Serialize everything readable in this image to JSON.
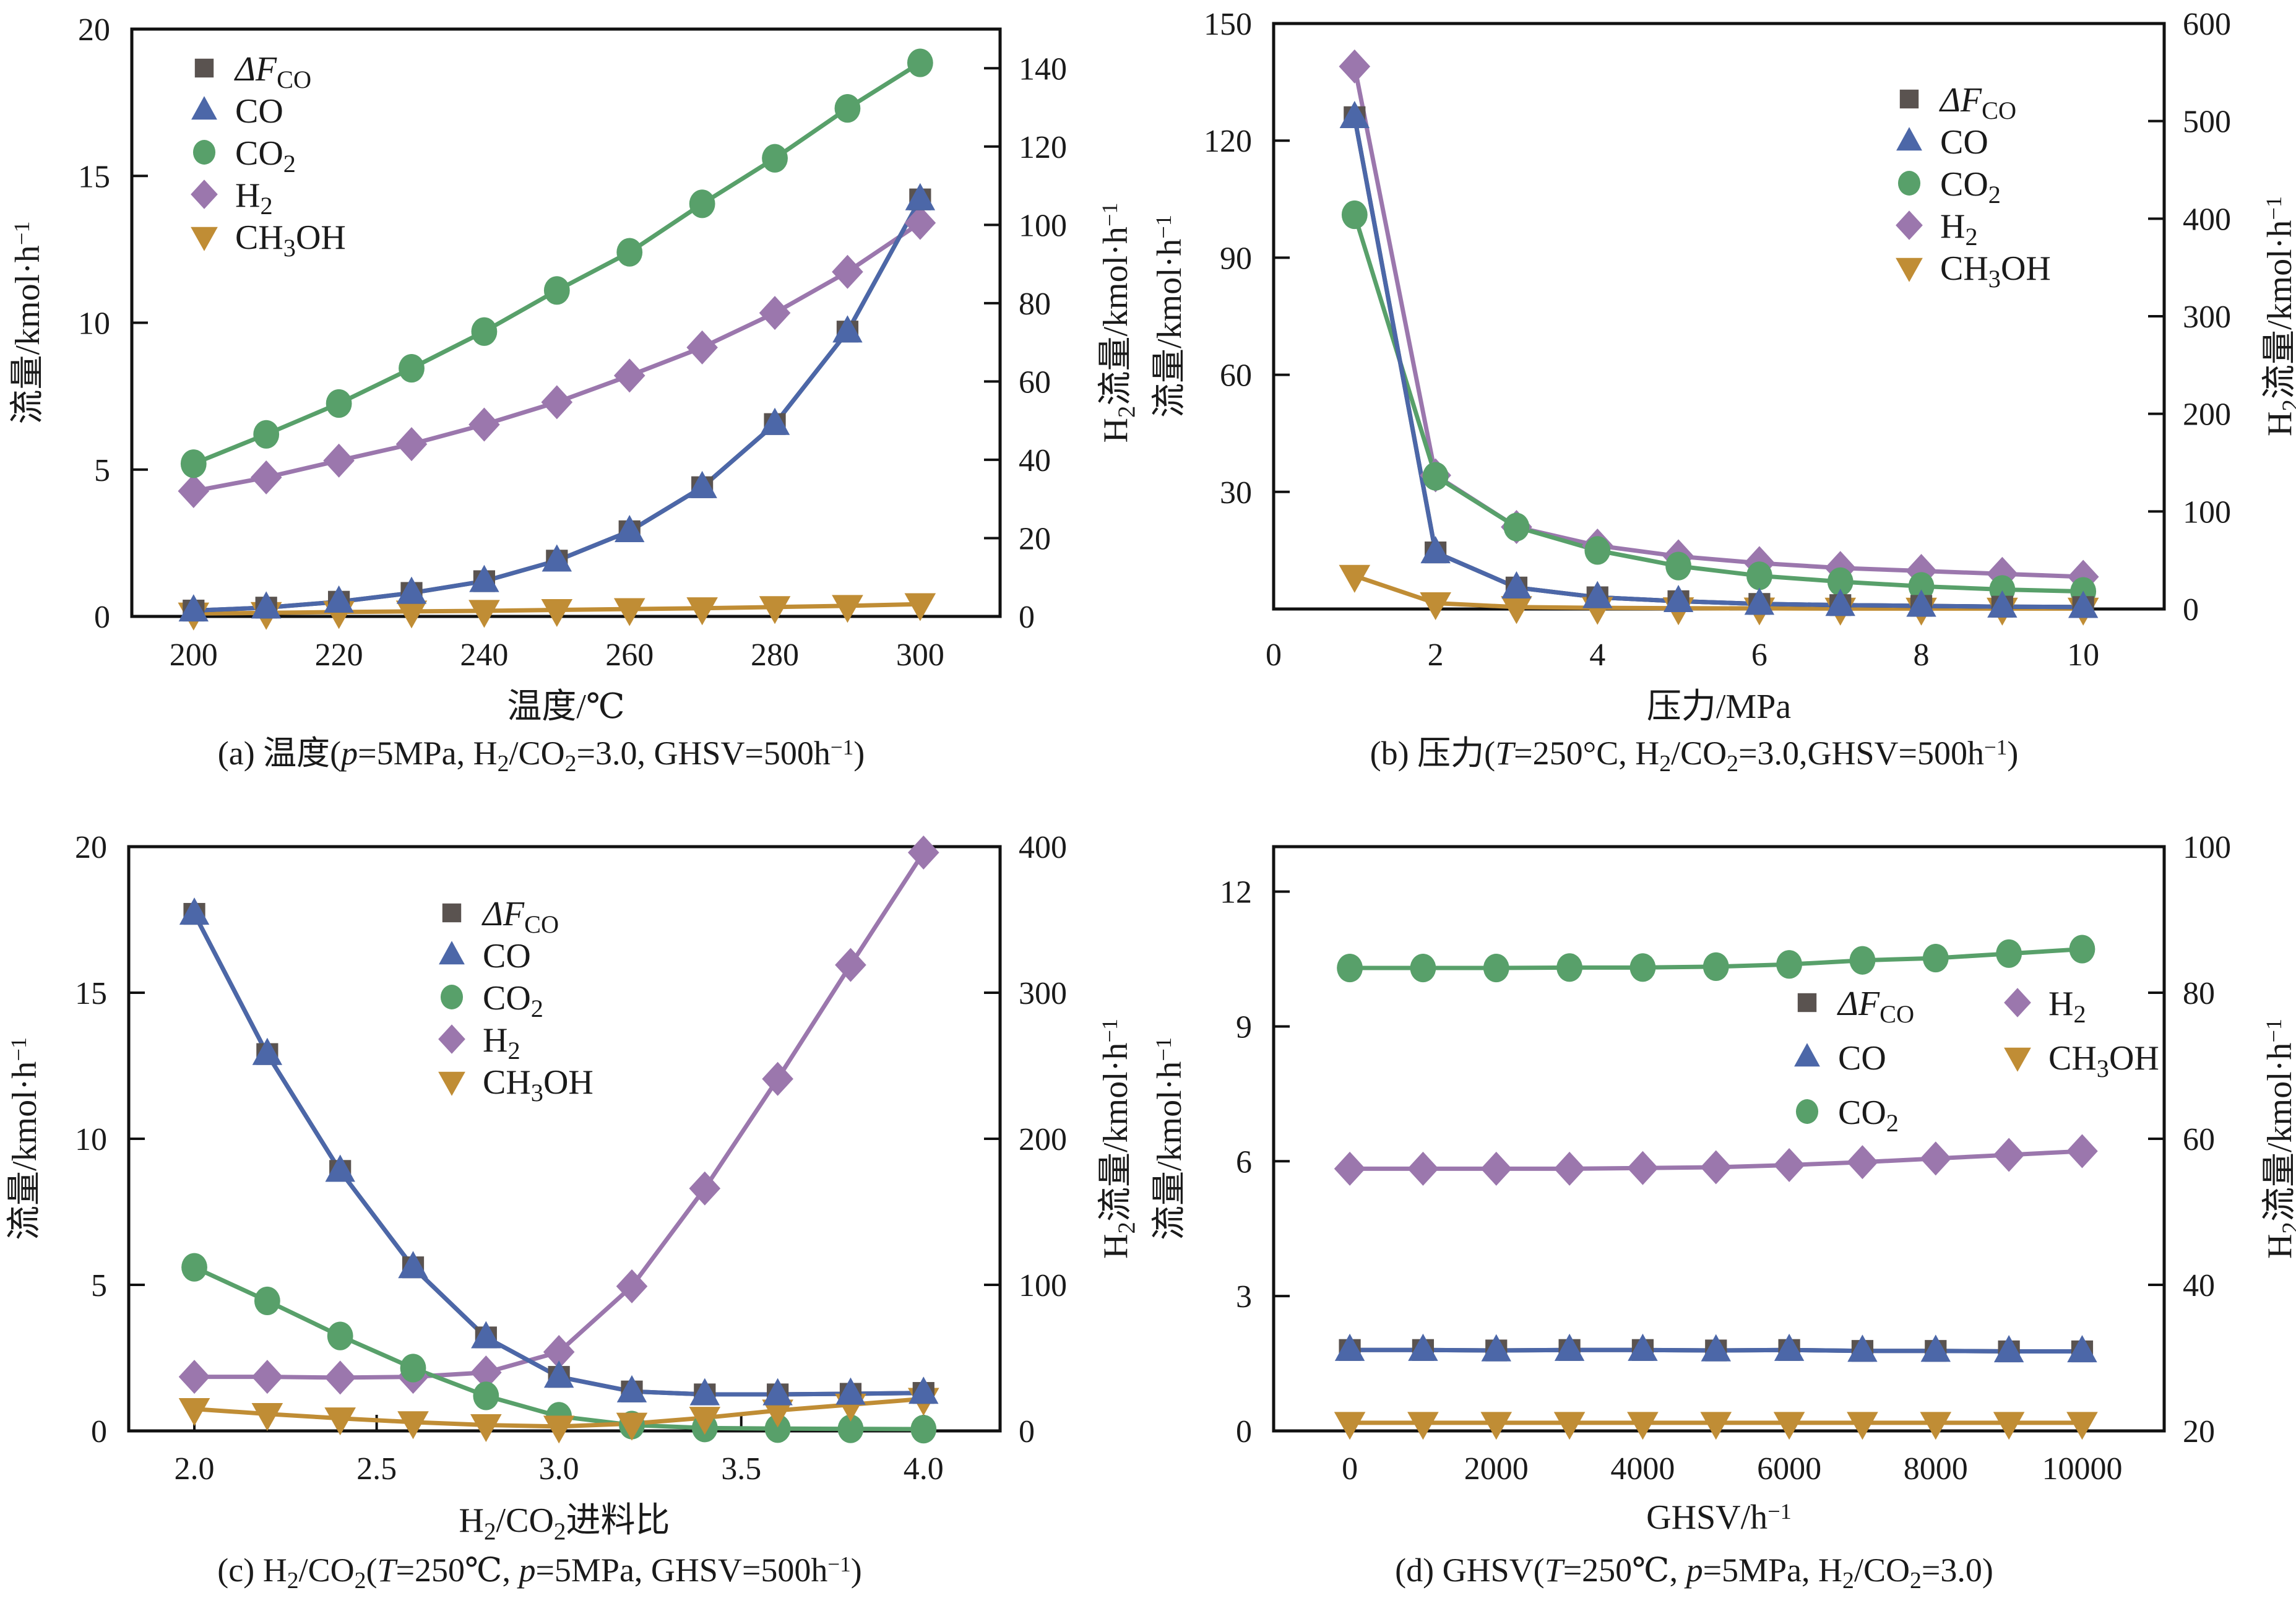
{
  "figure": {
    "colors": {
      "dF_CO": "#5a5350",
      "CO": "#4c67a8",
      "CO2": "#58a06a",
      "H2": "#9b77ad",
      "CH3OH": "#c08d35"
    },
    "legend_entries": [
      {
        "key": "dF_CO",
        "marker": "square",
        "label_main": "ΔF",
        "label_sub": "CO",
        "italic_main": true
      },
      {
        "key": "CO",
        "marker": "triangle-up",
        "label_main": "CO",
        "label_sub": ""
      },
      {
        "key": "CO2",
        "marker": "circle",
        "label_main": "CO",
        "label_sub": "2"
      },
      {
        "key": "H2",
        "marker": "diamond",
        "label_main": "H",
        "label_sub": "2"
      },
      {
        "key": "CH3OH",
        "marker": "triangle-down",
        "label_main": "CH",
        "label_sub": "3",
        "label_tail": "OH"
      }
    ]
  },
  "chart_data": [
    {
      "id": "a",
      "type": "line",
      "caption": "(a) 温度(p=5MPa, H2/CO2=3.0, GHSV=500h−1)",
      "caption_parts": [
        {
          "t": "(a) 温度("
        },
        {
          "t": "p",
          "i": true
        },
        {
          "t": "=5MPa, H"
        },
        {
          "t": "2",
          "sub": true
        },
        {
          "t": "/CO"
        },
        {
          "t": "2",
          "sub": true
        },
        {
          "t": "=3.0, GHSV=500h"
        },
        {
          "t": "−1",
          "sup": true
        },
        {
          "t": ")"
        }
      ],
      "xlabel": "温度/℃",
      "xlabel_parts": [
        {
          "t": "温度/℃"
        }
      ],
      "ylabel": "流量/kmol·h−1",
      "y2label": "H2流量/kmol·h−1",
      "xlim": [
        191.5,
        311
      ],
      "ylim": [
        0,
        20
      ],
      "y2lim": [
        0,
        150
      ],
      "xticks": [
        200,
        220,
        240,
        260,
        280,
        300
      ],
      "xtick_labels": [
        "200",
        "220",
        "240",
        "260",
        "280",
        "300"
      ],
      "yticks": [
        0,
        5,
        10,
        15,
        20
      ],
      "ytick_labels": [
        "0",
        "5",
        "10",
        "15",
        "20"
      ],
      "y2ticks": [
        0,
        20,
        40,
        60,
        80,
        100,
        120,
        140
      ],
      "y2tick_labels": [
        "0",
        "20",
        "40",
        "60",
        "80",
        "100",
        "120",
        "140"
      ],
      "legend": "top-left",
      "grid": false,
      "x": [
        200,
        210,
        220,
        230,
        240,
        250,
        260,
        270,
        280,
        290,
        300
      ],
      "series": [
        {
          "key": "dF_CO",
          "name": "ΔF_CO",
          "axis": "left",
          "values": [
            0.2,
            0.3,
            0.5,
            0.8,
            1.2,
            1.9,
            2.9,
            4.4,
            6.55,
            9.7,
            14.2
          ]
        },
        {
          "key": "CO",
          "name": "CO",
          "axis": "left",
          "values": [
            0.2,
            0.3,
            0.5,
            0.8,
            1.2,
            1.9,
            2.9,
            4.4,
            6.55,
            9.7,
            14.2
          ]
        },
        {
          "key": "CO2",
          "name": "CO2",
          "axis": "left",
          "values": [
            5.2,
            6.2,
            7.25,
            8.45,
            9.7,
            11.1,
            12.4,
            14.05,
            15.6,
            17.3,
            18.85
          ]
        },
        {
          "key": "H2",
          "name": "H2",
          "axis": "right",
          "values": [
            32,
            35.5,
            39.8,
            44,
            49,
            54.7,
            61.5,
            68.7,
            77.5,
            88,
            100.5
          ]
        },
        {
          "key": "CH3OH",
          "name": "CH3OH",
          "axis": "left",
          "values": [
            0.1,
            0.12,
            0.15,
            0.17,
            0.19,
            0.22,
            0.25,
            0.28,
            0.32,
            0.36,
            0.42
          ]
        }
      ]
    },
    {
      "id": "b",
      "type": "line",
      "caption": "(b) 压力(T=250°C, H2/CO2=3.0,GHSV=500h−1)",
      "caption_parts": [
        {
          "t": "(b) 压力("
        },
        {
          "t": "T",
          "i": true
        },
        {
          "t": "=250°C, H"
        },
        {
          "t": "2",
          "sub": true
        },
        {
          "t": "/CO"
        },
        {
          "t": "2",
          "sub": true
        },
        {
          "t": "=3.0,GHSV=500h"
        },
        {
          "t": "−1",
          "sup": true
        },
        {
          "t": ")"
        }
      ],
      "xlabel": "压力/MPa",
      "xlabel_parts": [
        {
          "t": "压力/MPa"
        }
      ],
      "ylabel": "流量/kmol·h−1",
      "y2label": "H2流量/kmol·h−1",
      "xlim": [
        0,
        11
      ],
      "ylim": [
        0,
        150
      ],
      "y2lim": [
        0,
        600
      ],
      "xticks": [
        0,
        2,
        4,
        6,
        8,
        10
      ],
      "xtick_labels": [
        "0",
        "2",
        "4",
        "6",
        "8",
        "10"
      ],
      "yticks": [
        30,
        60,
        90,
        120,
        150
      ],
      "ytick_labels": [
        "30",
        "60",
        "90",
        "120",
        "150"
      ],
      "y2ticks": [
        0,
        100,
        200,
        300,
        400,
        500,
        600
      ],
      "y2tick_labels": [
        "0",
        "100",
        "200",
        "300",
        "400",
        "500",
        "600"
      ],
      "legend": "top-right",
      "grid": false,
      "x": [
        1,
        2,
        3,
        4,
        5,
        6,
        7,
        8,
        9,
        10
      ],
      "series": [
        {
          "key": "dF_CO",
          "name": "ΔF_CO",
          "axis": "left",
          "values": [
            126,
            14.5,
            5.5,
            3,
            2,
            1.3,
            1,
            0.8,
            0.6,
            0.5
          ],
          "line_color": "#1c1f33"
        },
        {
          "key": "CO",
          "name": "CO",
          "axis": "left",
          "values": [
            126,
            14.5,
            5.5,
            3,
            2,
            1.3,
            1,
            0.8,
            0.6,
            0.5
          ]
        },
        {
          "key": "CO2",
          "name": "CO2",
          "axis": "left",
          "values": [
            101,
            34,
            21,
            15,
            11,
            8.5,
            7,
            5.8,
            5,
            4.5
          ]
        },
        {
          "key": "H2",
          "name": "H2",
          "axis": "right",
          "values": [
            556,
            137,
            84,
            65,
            54,
            47,
            42,
            39,
            36,
            33
          ]
        },
        {
          "key": "CH3OH",
          "name": "CH3OH",
          "axis": "left",
          "values": [
            8.5,
            1.5,
            0.5,
            0.3,
            0.2,
            0.15,
            0.1,
            0.1,
            0.1,
            0.1
          ]
        }
      ]
    },
    {
      "id": "c",
      "type": "line",
      "caption": "(c) H2/CO2(T=250℃, p=5MPa, GHSV=500h−1)",
      "caption_parts": [
        {
          "t": "(c) H"
        },
        {
          "t": "2",
          "sub": true
        },
        {
          "t": "/CO"
        },
        {
          "t": "2",
          "sub": true
        },
        {
          "t": "("
        },
        {
          "t": "T",
          "i": true
        },
        {
          "t": "=250℃, "
        },
        {
          "t": "p",
          "i": true
        },
        {
          "t": "=5MPa, GHSV=500h"
        },
        {
          "t": "−1",
          "sup": true
        },
        {
          "t": ")"
        }
      ],
      "xlabel": "H2/CO2进料比",
      "xlabel_parts": [
        {
          "t": "H"
        },
        {
          "t": "2",
          "sub": true
        },
        {
          "t": "/CO"
        },
        {
          "t": "2",
          "sub": true
        },
        {
          "t": "进料比"
        }
      ],
      "ylabel": "流量/kmol·h−1",
      "y2label": "H2流量/kmol·h−1",
      "xlim": [
        1.82,
        4.21
      ],
      "ylim": [
        0,
        20
      ],
      "y2lim": [
        0,
        400
      ],
      "xticks": [
        2.0,
        2.5,
        3.0,
        3.5,
        4.0
      ],
      "xtick_labels": [
        "2.0",
        "2.5",
        "3.0",
        "3.5",
        "4.0"
      ],
      "yticks": [
        0,
        5,
        10,
        15,
        20
      ],
      "ytick_labels": [
        "0",
        "5",
        "10",
        "15",
        "20"
      ],
      "y2ticks": [
        0,
        100,
        200,
        300,
        400
      ],
      "y2tick_labels": [
        "0",
        "100",
        "200",
        "300",
        "400"
      ],
      "legend": "top-center",
      "grid": false,
      "x": [
        2.0,
        2.2,
        2.4,
        2.6,
        2.8,
        3.0,
        3.2,
        3.4,
        3.6,
        3.8,
        4.0
      ],
      "series": [
        {
          "key": "dF_CO",
          "name": "ΔF_CO",
          "axis": "left",
          "values": [
            17.7,
            12.9,
            8.9,
            5.6,
            3.2,
            1.85,
            1.35,
            1.25,
            1.25,
            1.27,
            1.3
          ]
        },
        {
          "key": "CO",
          "name": "CO",
          "axis": "left",
          "values": [
            17.7,
            12.9,
            8.9,
            5.6,
            3.2,
            1.85,
            1.35,
            1.25,
            1.25,
            1.27,
            1.3
          ]
        },
        {
          "key": "CO2",
          "name": "CO2",
          "axis": "left",
          "values": [
            5.6,
            4.45,
            3.25,
            2.15,
            1.2,
            0.5,
            0.2,
            0.1,
            0.08,
            0.07,
            0.06
          ]
        },
        {
          "key": "H2",
          "name": "H2",
          "axis": "right",
          "values": [
            37,
            37,
            36.5,
            37,
            40,
            54,
            99,
            166,
            241,
            319,
            396
          ]
        },
        {
          "key": "CH3OH",
          "name": "CH3OH",
          "axis": "left",
          "values": [
            0.75,
            0.58,
            0.43,
            0.3,
            0.2,
            0.15,
            0.25,
            0.45,
            0.7,
            0.9,
            1.1
          ]
        }
      ]
    },
    {
      "id": "d",
      "type": "line",
      "caption": "(d) GHSV(T=250℃, p=5MPa, H2/CO2=3.0)",
      "caption_parts": [
        {
          "t": "(d) GHSV("
        },
        {
          "t": "T",
          "i": true
        },
        {
          "t": "=250℃, "
        },
        {
          "t": "p",
          "i": true
        },
        {
          "t": "=5MPa, H"
        },
        {
          "t": "2",
          "sub": true
        },
        {
          "t": "/CO"
        },
        {
          "t": "2",
          "sub": true
        },
        {
          "t": "=3.0)"
        }
      ],
      "xlabel": "GHSV/h−1",
      "xlabel_parts": [
        {
          "t": "GHSV/h"
        },
        {
          "t": "−1",
          "sup": true
        }
      ],
      "ylabel": "流量/kmol·h−1",
      "y2label": "H2流量/kmol·h−1",
      "xlim": [
        -1040,
        11120
      ],
      "ylim": [
        0,
        13
      ],
      "y2lim": [
        20,
        100
      ],
      "xticks": [
        0,
        2000,
        4000,
        6000,
        8000,
        10000
      ],
      "xtick_labels": [
        "0",
        "2000",
        "4000",
        "6000",
        "8000",
        "10000"
      ],
      "yticks": [
        0,
        3,
        6,
        9,
        12
      ],
      "ytick_labels": [
        "0",
        "3",
        "6",
        "9",
        "12"
      ],
      "y2ticks": [
        20,
        40,
        60,
        80,
        100
      ],
      "y2tick_labels": [
        "20",
        "40",
        "60",
        "80",
        "100"
      ],
      "legend": "center-right (two columns)",
      "grid": false,
      "x": [
        0,
        1000,
        2000,
        3000,
        4000,
        5000,
        6000,
        7000,
        8000,
        9000,
        10000
      ],
      "series": [
        {
          "key": "dF_CO",
          "name": "ΔF_CO",
          "axis": "left",
          "values": [
            1.8,
            1.8,
            1.79,
            1.8,
            1.8,
            1.79,
            1.8,
            1.78,
            1.78,
            1.77,
            1.77
          ]
        },
        {
          "key": "CO",
          "name": "CO",
          "axis": "left",
          "values": [
            1.8,
            1.8,
            1.79,
            1.8,
            1.8,
            1.79,
            1.8,
            1.78,
            1.78,
            1.77,
            1.77
          ]
        },
        {
          "key": "CO2",
          "name": "CO2",
          "axis": "left",
          "values": [
            10.3,
            10.3,
            10.3,
            10.31,
            10.31,
            10.33,
            10.38,
            10.47,
            10.52,
            10.62,
            10.72
          ]
        },
        {
          "key": "H2",
          "name": "H2",
          "axis": "right",
          "values": [
            55.9,
            55.9,
            55.9,
            55.9,
            56.0,
            56.1,
            56.4,
            56.8,
            57.3,
            57.8,
            58.3
          ]
        },
        {
          "key": "CH3OH",
          "name": "CH3OH",
          "axis": "left",
          "values": [
            0.18,
            0.18,
            0.18,
            0.18,
            0.18,
            0.18,
            0.18,
            0.18,
            0.18,
            0.18,
            0.18
          ]
        }
      ]
    }
  ]
}
